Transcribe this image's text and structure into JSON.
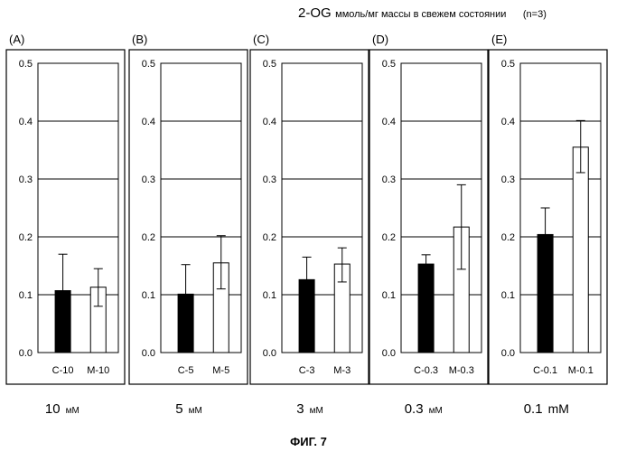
{
  "header": {
    "title_main": "2-OG",
    "title_unit": "ммоль/мг массы в свежем состоянии",
    "n_note": "(n=3)"
  },
  "figure_caption": "ФИГ. 7",
  "colors": {
    "control_bar": "#000000",
    "treated_bar": "#ffffff",
    "line": "#000000"
  },
  "chart_data": [
    {
      "type": "bar",
      "panel_label": "(A)",
      "concentration": "10",
      "conc_unit": "мМ",
      "categories": [
        "C-10",
        "M-10"
      ],
      "values": [
        0.107,
        0.113
      ],
      "error_high": [
        0.17,
        0.145
      ],
      "error_low": [
        0.107,
        0.08
      ],
      "ylim": [
        0,
        0.5
      ],
      "yticks": [
        "0.0",
        "0.1",
        "0.2",
        "0.3",
        "0.4",
        "0.5"
      ],
      "grid": true
    },
    {
      "type": "bar",
      "panel_label": "(B)",
      "concentration": "5",
      "conc_unit": "мМ",
      "categories": [
        "C-5",
        "M-5"
      ],
      "values": [
        0.101,
        0.155
      ],
      "error_high": [
        0.152,
        0.202
      ],
      "error_low": [
        0.101,
        0.11
      ],
      "ylim": [
        0,
        0.5
      ],
      "yticks": [
        "0.0",
        "0.1",
        "0.2",
        "0.3",
        "0.4",
        "0.5"
      ],
      "grid": true
    },
    {
      "type": "bar",
      "panel_label": "(C)",
      "concentration": "3",
      "conc_unit": "мМ",
      "categories": [
        "C-3",
        "M-3"
      ],
      "values": [
        0.126,
        0.153
      ],
      "error_high": [
        0.165,
        0.181
      ],
      "error_low": [
        0.126,
        0.122
      ],
      "ylim": [
        0,
        0.5
      ],
      "yticks": [
        "0.0",
        "0.1",
        "0.2",
        "0.3",
        "0.4",
        "0.5"
      ],
      "grid": true
    },
    {
      "type": "bar",
      "panel_label": "(D)",
      "concentration": "0.3",
      "conc_unit": "мМ",
      "categories": [
        "C-0.3",
        "M-0.3"
      ],
      "values": [
        0.153,
        0.217
      ],
      "error_high": [
        0.169,
        0.29
      ],
      "error_low": [
        0.153,
        0.144
      ],
      "ylim": [
        0,
        0.5
      ],
      "yticks": [
        "0.0",
        "0.1",
        "0.2",
        "0.3",
        "0.4",
        "0.5"
      ],
      "grid": true
    },
    {
      "type": "bar",
      "panel_label": "(E)",
      "concentration": "0.1",
      "conc_unit": "mM",
      "categories": [
        "C-0.1",
        "M-0.1"
      ],
      "values": [
        0.204,
        0.355
      ],
      "error_high": [
        0.25,
        0.401
      ],
      "error_low": [
        0.204,
        0.311
      ],
      "ylim": [
        0,
        0.5
      ],
      "yticks": [
        "0.0",
        "0.1",
        "0.2",
        "0.3",
        "0.4",
        "0.5"
      ],
      "grid": true
    }
  ]
}
